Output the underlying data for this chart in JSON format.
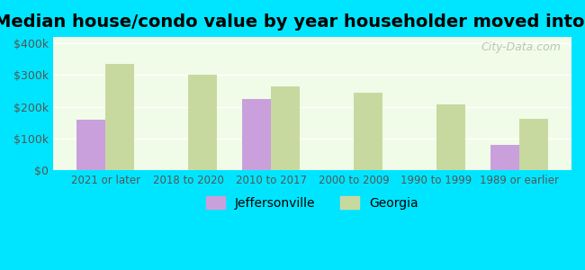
{
  "title": "Median house/condo value by year householder moved into unit",
  "categories": [
    "2021 or later",
    "2018 to 2020",
    "2010 to 2017",
    "2000 to 2009",
    "1990 to 1999",
    "1989 or earlier"
  ],
  "jeffersonville": [
    160000,
    null,
    225000,
    null,
    null,
    80000
  ],
  "georgia": [
    335000,
    300000,
    265000,
    245000,
    207000,
    163000
  ],
  "bar_color_jeff": "#c9a0dc",
  "bar_color_georgia": "#c8d9a0",
  "background_outer": "#00e5ff",
  "background_inner": "#f0fce8",
  "yticks": [
    0,
    100000,
    200000,
    300000,
    400000
  ],
  "ytick_labels": [
    "$0",
    "$100k",
    "$200k",
    "$300k",
    "$400k"
  ],
  "ylim": [
    0,
    420000
  ],
  "legend_labels": [
    "Jeffersonville",
    "Georgia"
  ],
  "watermark": "City-Data.com",
  "title_fontsize": 14,
  "bar_width": 0.35
}
